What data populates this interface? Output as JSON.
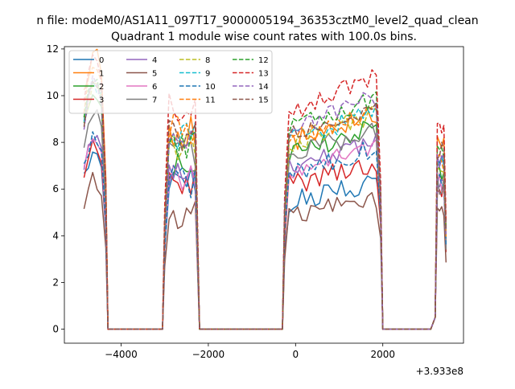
{
  "figure": {
    "suptitle": "n file: modeM0/AS1A11_097T17_9000005194_36353cztM0_level2_quad_clean",
    "offset_label": "+3.933e8"
  },
  "chart_data": {
    "type": "line",
    "title": "Quadrant 1 module wise count rates with 100.0s bins.",
    "xlabel": "",
    "ylabel": "",
    "xlim": [
      -5300,
      3850
    ],
    "ylim": [
      -0.6,
      12.1
    ],
    "xticks": [
      -4000,
      -2000,
      0,
      2000
    ],
    "xtick_labels": [
      "−4000",
      "−2000",
      "0",
      "2000"
    ],
    "yticks": [
      0,
      2,
      4,
      6,
      8,
      10,
      12
    ],
    "ytick_labels": [
      "0",
      "2",
      "4",
      "6",
      "8",
      "10",
      "12"
    ],
    "grid": false,
    "legend": {
      "placement": "top-left",
      "columns": 4
    },
    "segments": [
      {
        "x_start": -4850,
        "x_end": -4350
      },
      {
        "x_start": -3000,
        "x_end": -2250
      },
      {
        "x_start": -250,
        "x_end": 1950
      },
      {
        "x_start": 3200,
        "x_end": 3450
      }
    ],
    "zero_ranges": [
      [
        -4300,
        -3050
      ],
      [
        -2200,
        -300
      ],
      [
        2000,
        3100
      ]
    ],
    "series": [
      {
        "name": "0",
        "color": "#1f77b4",
        "dash": false,
        "levels": [
          7.0,
          6.2,
          6.0,
          7.0
        ]
      },
      {
        "name": "1",
        "color": "#ff7f0e",
        "dash": false,
        "levels": [
          10.8,
          8.5,
          8.8,
          7.8
        ]
      },
      {
        "name": "2",
        "color": "#2ca02c",
        "dash": false,
        "levels": [
          9.2,
          7.0,
          8.3,
          6.8
        ]
      },
      {
        "name": "3",
        "color": "#d62728",
        "dash": false,
        "levels": [
          7.3,
          6.2,
          6.8,
          6.0
        ]
      },
      {
        "name": "4",
        "color": "#9467bd",
        "dash": false,
        "levels": [
          7.7,
          6.4,
          7.7,
          6.5
        ]
      },
      {
        "name": "5",
        "color": "#8c564b",
        "dash": false,
        "levels": [
          5.8,
          4.9,
          5.4,
          5.2
        ]
      },
      {
        "name": "6",
        "color": "#e377c2",
        "dash": false,
        "levels": [
          7.4,
          6.6,
          7.5,
          6.4
        ]
      },
      {
        "name": "7",
        "color": "#7f7f7f",
        "dash": false,
        "levels": [
          8.5,
          7.5,
          8.2,
          6.2
        ]
      },
      {
        "name": "8",
        "color": "#bcbd22",
        "dash": true,
        "levels": [
          9.4,
          7.8,
          8.8,
          7.2
        ]
      },
      {
        "name": "9",
        "color": "#17becf",
        "dash": true,
        "levels": [
          9.6,
          8.2,
          8.9,
          7.4
        ]
      },
      {
        "name": "10",
        "color": "#1f77b4",
        "dash": true,
        "levels": [
          7.6,
          6.3,
          7.4,
          6.6
        ]
      },
      {
        "name": "11",
        "color": "#ff7f0e",
        "dash": true,
        "levels": [
          10.2,
          8.5,
          9.0,
          7.2
        ]
      },
      {
        "name": "12",
        "color": "#2ca02c",
        "dash": true,
        "levels": [
          9.8,
          8.0,
          9.4,
          7.8
        ]
      },
      {
        "name": "13",
        "color": "#d62728",
        "dash": true,
        "levels": [
          10.5,
          9.6,
          10.3,
          8.5
        ]
      },
      {
        "name": "14",
        "color": "#9467bd",
        "dash": true,
        "levels": [
          9.7,
          8.0,
          9.5,
          7.4
        ]
      },
      {
        "name": "15",
        "color": "#8c564b",
        "dash": true,
        "levels": [
          9.8,
          8.3,
          9.1,
          7.7
        ]
      }
    ]
  }
}
